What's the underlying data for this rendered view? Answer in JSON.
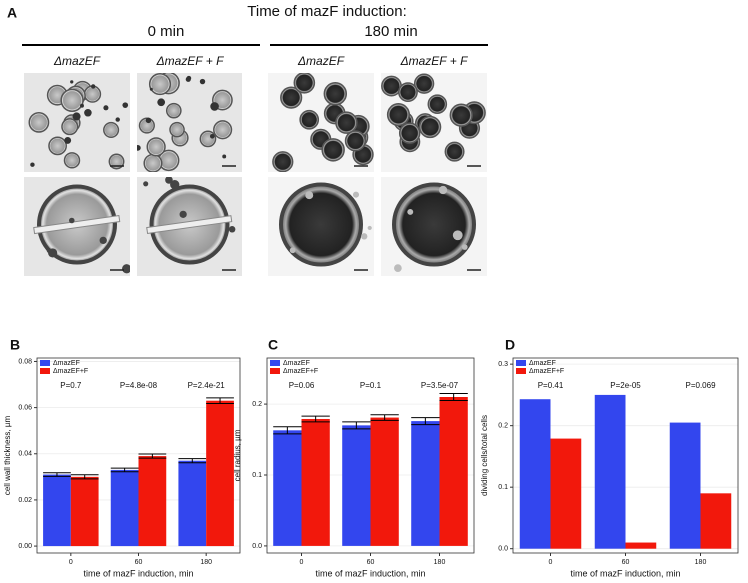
{
  "panel_a": {
    "label": "A",
    "title": "Time of mazF induction:",
    "groups": [
      {
        "label": "0 min",
        "columns": [
          "ΔmazEF",
          "ΔmazEF + F"
        ]
      },
      {
        "label": "180 min",
        "columns": [
          "ΔmazEF",
          "ΔmazEF + F"
        ]
      }
    ]
  },
  "chart_data": [
    {
      "type": "bar",
      "panel_label": "B",
      "x_label": "time of mazF induction, min",
      "y_label": "cell wall thickness, µm",
      "categories": [
        "0",
        "60",
        "180"
      ],
      "series": [
        {
          "name": "ΔmazEF",
          "color": "#3346ee",
          "values": [
            0.031,
            0.033,
            0.037
          ],
          "errors": [
            0.0008,
            0.0008,
            0.0009
          ]
        },
        {
          "name": "ΔmazEF+F",
          "color": "#f2180c",
          "values": [
            0.03,
            0.039,
            0.063
          ],
          "errors": [
            0.0009,
            0.0009,
            0.0012
          ]
        }
      ],
      "annotations": [
        "P=0.7",
        "P=4.8e-08",
        "P=2.4e-21"
      ],
      "ylim": [
        -0.003,
        0.0815
      ],
      "yticks": [
        {
          "value": 0,
          "label": "0.00"
        },
        {
          "value": 0.02,
          "label": "0.02"
        },
        {
          "value": 0.04,
          "label": "0.04"
        },
        {
          "value": 0.06,
          "label": "0.06"
        },
        {
          "value": 0.08,
          "label": "0.08"
        }
      ],
      "legend": "top-left"
    },
    {
      "type": "bar",
      "panel_label": "C",
      "x_label": "time of mazF induction, min",
      "y_label": "cell radius, µm",
      "categories": [
        "0",
        "60",
        "180"
      ],
      "series": [
        {
          "name": "ΔmazEF",
          "color": "#3346ee",
          "values": [
            0.163,
            0.17,
            0.176
          ],
          "errors": [
            0.005,
            0.005,
            0.005
          ]
        },
        {
          "name": "ΔmazEF+F",
          "color": "#f2180c",
          "values": [
            0.179,
            0.181,
            0.21
          ],
          "errors": [
            0.004,
            0.004,
            0.005
          ]
        }
      ],
      "annotations": [
        "P=0.06",
        "P=0.1",
        "P=3.5e-07"
      ],
      "ylim": [
        -0.01,
        0.265
      ],
      "yticks": [
        {
          "value": 0,
          "label": "0.0"
        },
        {
          "value": 0.1,
          "label": "0.1"
        },
        {
          "value": 0.2,
          "label": "0.2"
        }
      ],
      "legend": "top-left"
    },
    {
      "type": "bar",
      "panel_label": "D",
      "x_label": "time of mazF induction, min",
      "y_label": "dividing cells/total cells",
      "categories": [
        "0",
        "60",
        "180"
      ],
      "series": [
        {
          "name": "ΔmazEF",
          "color": "#3346ee",
          "values": [
            0.243,
            0.25,
            0.205
          ]
        },
        {
          "name": "ΔmazEF+F",
          "color": "#f2180c",
          "values": [
            0.179,
            0.01,
            0.09
          ]
        }
      ],
      "annotations": [
        "P=0.41",
        "P=2e-05",
        "P=0.069"
      ],
      "ylim": [
        -0.007,
        0.31
      ],
      "yticks": [
        {
          "value": 0,
          "label": "0.0"
        },
        {
          "value": 0.1,
          "label": "0.1"
        },
        {
          "value": 0.2,
          "label": "0.2"
        },
        {
          "value": 0.3,
          "label": "0.3"
        }
      ],
      "legend": "top-left"
    }
  ]
}
